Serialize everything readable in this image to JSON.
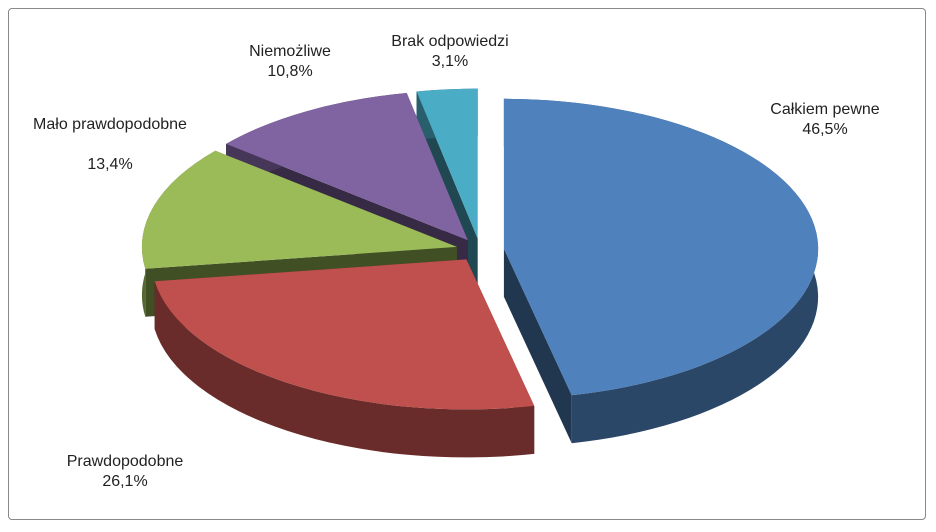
{
  "chart_data": {
    "type": "pie",
    "categories": [
      "Całkiem pewne",
      "Prawdopodobne",
      "Mało prawdopodobne",
      "Niemożliwe",
      "Brak odpowiedzi"
    ],
    "values": [
      46.5,
      26.1,
      13.4,
      10.8,
      3.1
    ],
    "value_labels": [
      "46,5%",
      "26,1%",
      "13,4%",
      "10,8%",
      "3,1%"
    ],
    "colors": [
      "#4f81bd",
      "#c0504d",
      "#9bbb59",
      "#8064a2",
      "#4bacc6"
    ],
    "exploded": true
  }
}
